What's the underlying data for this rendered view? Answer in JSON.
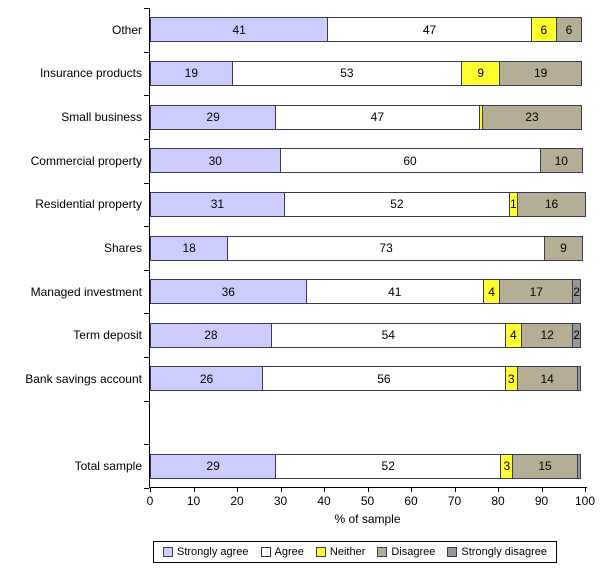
{
  "chart_data": {
    "type": "bar",
    "subtype": "horizontal-stacked",
    "title": "",
    "xlabel": "% of sample",
    "ylabel": "",
    "xlim": [
      0,
      100
    ],
    "xticks": [
      0,
      10,
      20,
      30,
      40,
      50,
      60,
      70,
      80,
      90,
      100
    ],
    "grid": false,
    "legend_position": "bottom",
    "series": [
      {
        "name": "Strongly agree",
        "color": "#ccccff"
      },
      {
        "name": "Agree",
        "color": "#ffffff"
      },
      {
        "name": "Neither",
        "color": "#ffff2e"
      },
      {
        "name": "Disagree",
        "color": "#b5ae94"
      },
      {
        "name": "Strongly disagree",
        "color": "#969696"
      }
    ],
    "rows": [
      {
        "category": "Other",
        "values": [
          41,
          47,
          6,
          6,
          0
        ],
        "labels": [
          "41",
          "47",
          "6",
          "6",
          ""
        ]
      },
      {
        "category": "Insurance products",
        "values": [
          19,
          53,
          9,
          19,
          0
        ],
        "labels": [
          "19",
          "53",
          "9",
          "19",
          ""
        ]
      },
      {
        "category": "Small business",
        "values": [
          29,
          47,
          1,
          23,
          0
        ],
        "labels": [
          "29",
          "47",
          "",
          "23",
          ""
        ]
      },
      {
        "category": "Commercial property",
        "values": [
          30,
          60,
          0,
          10,
          0
        ],
        "labels": [
          "30",
          "60",
          "",
          "10",
          ""
        ]
      },
      {
        "category": "Residential property",
        "values": [
          31,
          52,
          1,
          16,
          0
        ],
        "labels": [
          "31",
          "52",
          "1",
          "16",
          ""
        ]
      },
      {
        "category": "Shares",
        "values": [
          18,
          73,
          0,
          9,
          0
        ],
        "labels": [
          "18",
          "73",
          "",
          "9",
          ""
        ]
      },
      {
        "category": "Managed investment",
        "values": [
          36,
          41,
          4,
          17,
          2
        ],
        "labels": [
          "36",
          "41",
          "4",
          "17",
          "2"
        ]
      },
      {
        "category": "Term deposit",
        "values": [
          28,
          54,
          4,
          12,
          2
        ],
        "labels": [
          "28",
          "54",
          "4",
          "12",
          "2"
        ]
      },
      {
        "category": "Bank savings account",
        "values": [
          26,
          56,
          3,
          14,
          1
        ],
        "labels": [
          "26",
          "56",
          "3",
          "14",
          ""
        ]
      },
      {
        "category": "",
        "values": [
          0,
          0,
          0,
          0,
          0
        ],
        "labels": [
          "",
          "",
          "",
          "",
          ""
        ]
      },
      {
        "category": "Total sample",
        "values": [
          29,
          52,
          3,
          15,
          1
        ],
        "labels": [
          "29",
          "52",
          "3",
          "15",
          ""
        ]
      }
    ]
  }
}
